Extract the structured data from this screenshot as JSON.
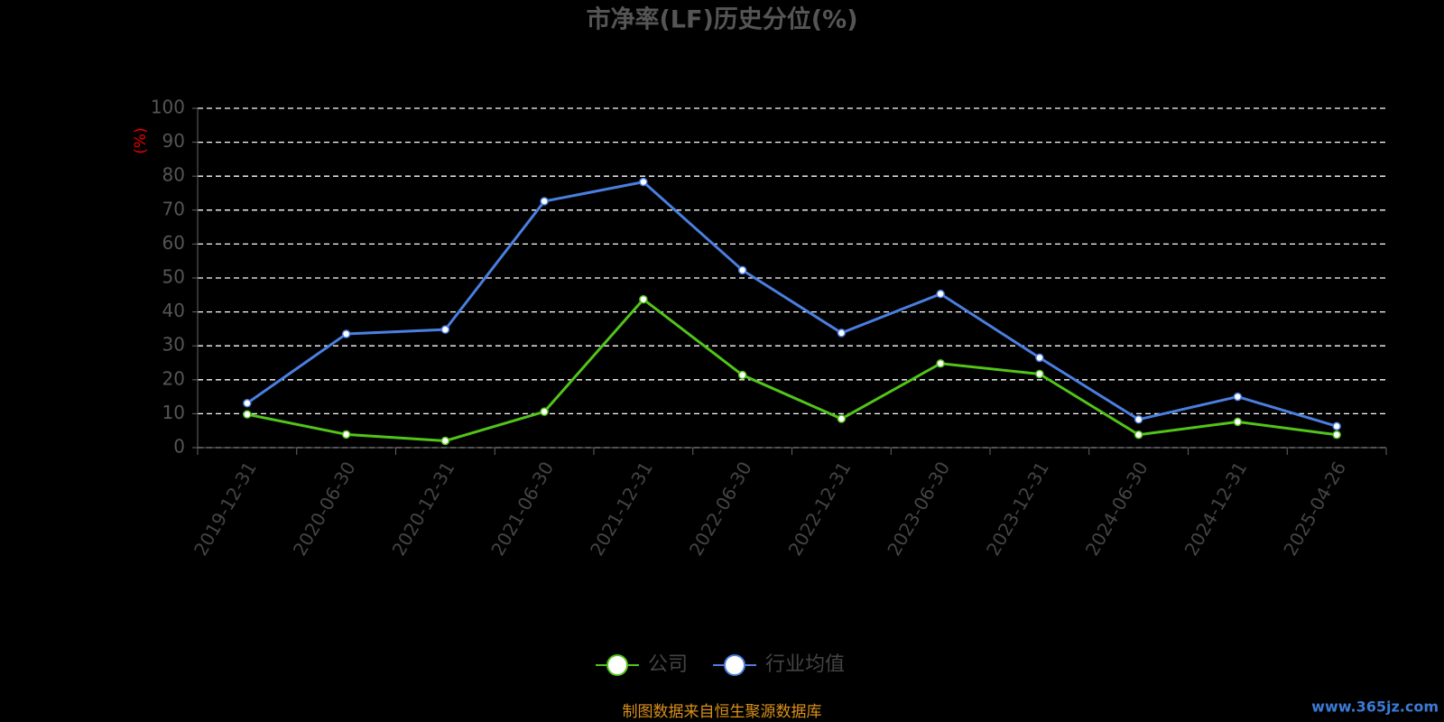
{
  "chart_data": {
    "type": "line",
    "title": "市净率(LF)历史分位(%)",
    "y_label": "(%)",
    "categories": [
      "2019-12-31",
      "2020-06-30",
      "2020-12-31",
      "2021-06-30",
      "2021-12-31",
      "2022-06-30",
      "2022-12-31",
      "2023-06-30",
      "2023-12-31",
      "2024-06-30",
      "2024-12-31",
      "2025-04-26"
    ],
    "series": [
      {
        "name": "公司",
        "color": "#52c41a",
        "values": [
          9.8,
          3.9,
          2.0,
          10.6,
          43.7,
          21.4,
          8.5,
          24.8,
          21.7,
          3.8,
          7.6,
          3.8
        ]
      },
      {
        "name": "行业均值",
        "color": "#4a7fe0",
        "values": [
          13.1,
          33.5,
          34.8,
          72.6,
          78.3,
          52.3,
          33.8,
          45.3,
          26.5,
          8.3,
          15.0,
          6.3
        ]
      }
    ],
    "ylim": [
      0,
      100
    ],
    "yticks": [
      0,
      10,
      20,
      30,
      40,
      50,
      60,
      70,
      80,
      90,
      100
    ],
    "grid": true,
    "source": "制图数据来自恒生聚源数据库",
    "watermark": "www.365jz.com"
  }
}
